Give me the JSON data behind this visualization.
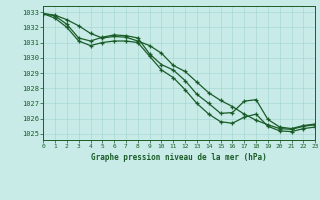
{
  "x": [
    0,
    1,
    2,
    3,
    4,
    5,
    6,
    7,
    8,
    9,
    10,
    11,
    12,
    13,
    14,
    15,
    16,
    17,
    18,
    19,
    20,
    21,
    22,
    23
  ],
  "line1": [
    1032.9,
    1032.8,
    1032.5,
    1032.1,
    1031.6,
    1031.3,
    1031.4,
    1031.35,
    1031.1,
    1030.8,
    1030.3,
    1029.5,
    1029.1,
    1028.4,
    1027.7,
    1027.2,
    1026.8,
    1026.3,
    1025.9,
    1025.6,
    1025.35,
    1025.3,
    1025.5,
    1025.6
  ],
  "line2": [
    1032.9,
    1032.75,
    1032.2,
    1031.3,
    1031.1,
    1031.35,
    1031.5,
    1031.45,
    1031.3,
    1030.25,
    1029.55,
    1029.2,
    1028.5,
    1027.6,
    1027.0,
    1026.35,
    1026.4,
    1027.15,
    1027.25,
    1025.95,
    1025.45,
    1025.35,
    1025.55,
    1025.65
  ],
  "line3": [
    1032.9,
    1032.6,
    1032.0,
    1031.1,
    1030.8,
    1031.0,
    1031.1,
    1031.1,
    1031.0,
    1030.1,
    1029.2,
    1028.7,
    1027.9,
    1027.0,
    1026.3,
    1025.8,
    1025.7,
    1026.1,
    1026.3,
    1025.5,
    1025.2,
    1025.15,
    1025.35,
    1025.45
  ],
  "bg_color": "#c8ebe8",
  "grid_color": "#a8d8d4",
  "line_color": "#1a5c28",
  "marker": "+",
  "ylabel_ticks": [
    1025,
    1026,
    1027,
    1028,
    1029,
    1030,
    1031,
    1032,
    1033
  ],
  "xlabel": "Graphe pression niveau de la mer (hPa)",
  "ylim": [
    1024.6,
    1033.4
  ],
  "xlim": [
    0,
    23
  ]
}
